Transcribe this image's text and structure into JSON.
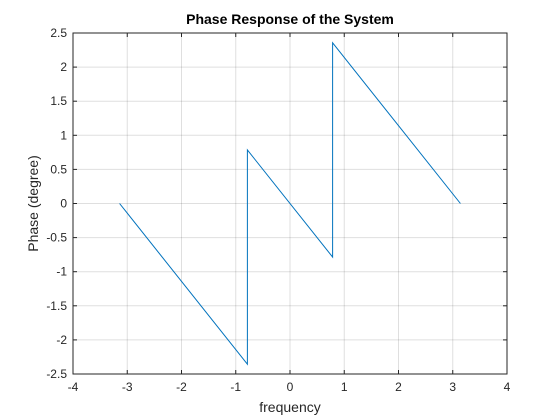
{
  "chart_data": {
    "type": "line",
    "title": "Phase Response of the System",
    "xlabel": "frequency",
    "ylabel": "Phase (degree)",
    "xlim": [
      -4,
      4
    ],
    "ylim": [
      -2.5,
      2.5
    ],
    "xticks": [
      -4,
      -3,
      -2,
      -1,
      0,
      1,
      2,
      3,
      4
    ],
    "xtick_labels": [
      "-4",
      "-3",
      "-2",
      "-1",
      "0",
      "1",
      "2",
      "3",
      "4"
    ],
    "yticks": [
      -2.5,
      -2,
      -1.5,
      -1,
      -0.5,
      0,
      0.5,
      1,
      1.5,
      2,
      2.5
    ],
    "ytick_labels": [
      "-2.5",
      "-2",
      "-1.5",
      "-1",
      "-0.5",
      "0",
      "0.5",
      "1",
      "1.5",
      "2",
      "2.5"
    ],
    "grid": true,
    "series": [
      {
        "color": "#0072bd",
        "x": [
          -3.1416,
          -0.7854,
          -0.7854,
          0.7854,
          0.7854,
          3.1416
        ],
        "y": [
          0,
          -2.3562,
          0.7854,
          -0.7854,
          2.3562,
          0
        ]
      }
    ]
  }
}
